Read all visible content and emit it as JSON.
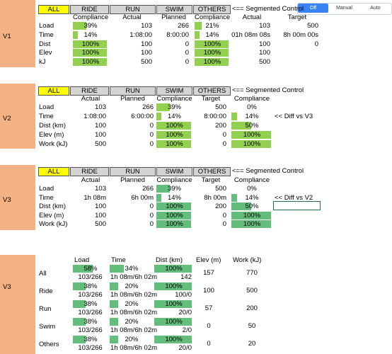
{
  "segmented_control": {
    "options": [
      "Off",
      "Manual",
      "Auto"
    ],
    "selected": 0
  },
  "blocks": [
    {
      "label": "V1",
      "tabs": [
        "ALL",
        "RIDE",
        "RUN",
        "SWIM",
        "OTHERS"
      ],
      "active_tab": 0,
      "tab_note": "<== Segmented Control",
      "columns": [
        "Compliance",
        "Actual",
        "Planned",
        "Compliance",
        "Actual",
        "Target"
      ],
      "rows": [
        {
          "label": "Load",
          "cells": [
            {
              "value": 39,
              "label": "39%"
            },
            "103",
            "266",
            {
              "value": 21,
              "label": "21%"
            },
            "103",
            "500"
          ]
        },
        {
          "label": "Time",
          "cells": [
            {
              "value": 14,
              "label": "14%"
            },
            "1:08:00",
            "8:00:00",
            {
              "value": 14,
              "label": "14%"
            },
            "01h 08m 08s",
            "8h 00m 00s"
          ]
        },
        {
          "label": "Dist",
          "cells": [
            {
              "value": 100,
              "label": "100%"
            },
            "100",
            "0",
            {
              "value": 100,
              "label": "100%"
            },
            "100",
            "0"
          ]
        },
        {
          "label": "Elev",
          "cells": [
            {
              "value": 100,
              "label": "100%"
            },
            "100",
            "0",
            {
              "value": 100,
              "label": "100%"
            },
            "100"
          ]
        },
        {
          "label": "kJ",
          "cells": [
            {
              "value": 100,
              "label": "100%"
            },
            "500",
            "0",
            {
              "value": 100,
              "label": "100%"
            },
            "500"
          ]
        }
      ]
    },
    {
      "label": "V2",
      "tabs": [
        "ALL",
        "RIDE",
        "RUN",
        "SWIM",
        "OTHERS"
      ],
      "active_tab": 0,
      "tab_note": "<== Segmented Control",
      "columns": [
        "Actual",
        "Planned",
        "Compliance",
        "Target",
        "Compliance"
      ],
      "rows": [
        {
          "label": "Load",
          "cells": [
            "103",
            "266",
            {
              "value": 39,
              "label": "39%"
            },
            "500",
            {
              "value": 0,
              "label": "0%"
            }
          ]
        },
        {
          "label": "Time",
          "cells": [
            "1:08:00",
            "6:00:00",
            {
              "value": 14,
              "label": "14%"
            },
            "8:00:00",
            {
              "value": 14,
              "label": "14%"
            }
          ],
          "note": "<< Diff vs V3"
        },
        {
          "label": "Dist (km)",
          "cells": [
            "100",
            "0",
            {
              "value": 100,
              "label": "100%"
            },
            "200",
            {
              "value": 50,
              "label": "50%"
            }
          ]
        },
        {
          "label": "Elev (m)",
          "cells": [
            "100",
            "0",
            {
              "value": 100,
              "label": "100%"
            },
            "0",
            {
              "value": 100,
              "label": "100%"
            }
          ]
        },
        {
          "label": "Work (kJ)",
          "cells": [
            "500",
            "0",
            {
              "value": 100,
              "label": "100%"
            },
            "0",
            {
              "value": 100,
              "label": "100%"
            }
          ]
        }
      ]
    },
    {
      "label": "V3",
      "tabs": [
        "ALL",
        "RIDE",
        "RUN",
        "SWIM",
        "OTHERS"
      ],
      "active_tab": 0,
      "tab_note": "<== Segmented Control",
      "columns": [
        "Actual",
        "Planned",
        "Compliance",
        "Target",
        "Compliance"
      ],
      "rows": [
        {
          "label": "Load",
          "cells": [
            "103",
            "266",
            {
              "value": 39,
              "label": "39%"
            },
            "500",
            {
              "value": 0,
              "label": "0%"
            }
          ]
        },
        {
          "label": "Time",
          "cells": [
            "1h 08m",
            "6h 00m",
            {
              "value": 14,
              "label": "14%"
            },
            "8h 00m",
            {
              "value": 14,
              "label": "14%"
            }
          ],
          "note": "<< Diff vs V2"
        },
        {
          "label": "Dist (km)",
          "cells": [
            "100",
            "0",
            {
              "value": 100,
              "label": "100%"
            },
            "200",
            {
              "value": 50,
              "label": "50%"
            }
          ]
        },
        {
          "label": "Elev (m)",
          "cells": [
            "100",
            "0",
            {
              "value": 100,
              "label": "100%"
            },
            "0",
            {
              "value": 100,
              "label": "100%"
            }
          ]
        },
        {
          "label": "Work (kJ)",
          "cells": [
            "500",
            "0",
            {
              "value": 100,
              "label": "100%"
            },
            "0",
            {
              "value": 100,
              "label": "100%"
            }
          ]
        }
      ]
    }
  ],
  "summary": {
    "label": "V3",
    "columns": [
      "Load",
      "Time",
      "Dist (km)",
      "Elev (m)",
      "Work (kJ)"
    ],
    "rows": [
      {
        "label": "All",
        "bars": [
          {
            "value": 58,
            "label": "58%"
          },
          {
            "value": 34,
            "label": "34%"
          },
          {
            "value": 100,
            "label": "100%"
          }
        ],
        "ratios": [
          "103/266",
          "1h 08m/6h 02m",
          "142"
        ],
        "elev": "157",
        "work": "770"
      },
      {
        "label": "Ride",
        "bars": [
          {
            "value": 38,
            "label": "38%"
          },
          {
            "value": 20,
            "label": "20%"
          },
          {
            "value": 100,
            "label": "100%"
          }
        ],
        "ratios": [
          "103/266",
          "1h 08m/6h 02m",
          "100/0"
        ],
        "elev": "100",
        "work": "500"
      },
      {
        "label": "Run",
        "bars": [
          {
            "value": 38,
            "label": "38%"
          },
          {
            "value": 20,
            "label": "20%"
          },
          {
            "value": 100,
            "label": "100%"
          }
        ],
        "ratios": [
          "103/266",
          "1h 08m/6h 02m",
          "20/0"
        ],
        "elev": "57",
        "work": "200"
      },
      {
        "label": "Swim",
        "bars": [
          {
            "value": 38,
            "label": "38%"
          },
          {
            "value": 20,
            "label": "20%"
          },
          {
            "value": 100,
            "label": "100%"
          }
        ],
        "ratios": [
          "103/266",
          "1h 08m/6h 02m",
          "2/0"
        ],
        "elev": "0",
        "work": "50"
      },
      {
        "label": "Others",
        "bars": [
          {
            "value": 38,
            "label": "38%"
          },
          {
            "value": 20,
            "label": "20%"
          },
          {
            "value": 100,
            "label": "100%"
          }
        ],
        "ratios": [
          "103/266",
          "1h 08m/6h 02m",
          "20/0"
        ],
        "elev": "0",
        "work": "20"
      }
    ]
  }
}
